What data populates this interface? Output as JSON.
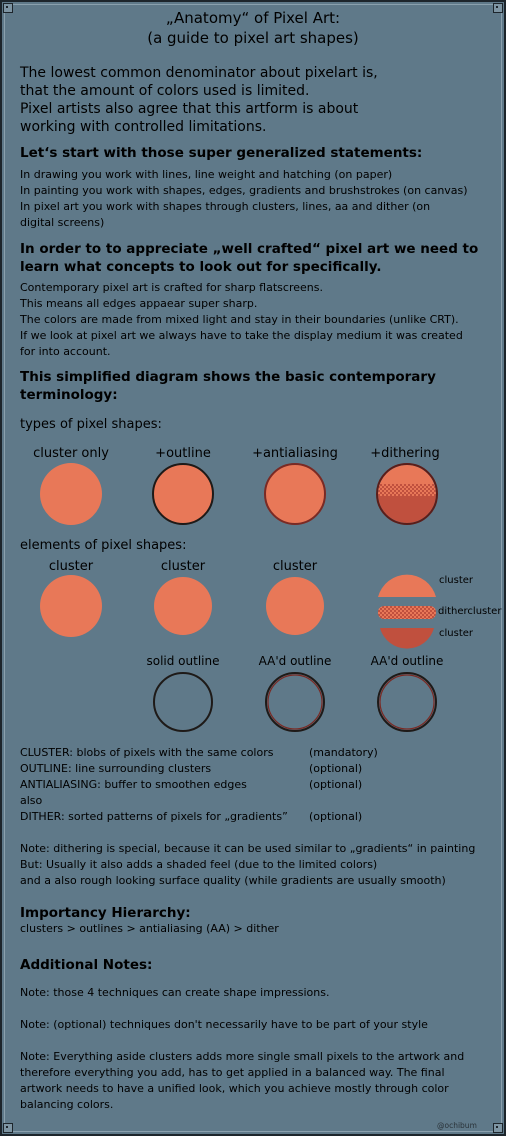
{
  "title": {
    "line1": "„Anatomy“ of Pixel Art:",
    "line2": "(a guide to pixel art shapes)"
  },
  "intro": [
    "The lowest common denominator about pixelart is,",
    "that the amount of colors used is limited.",
    "Pixel artists also agree that this artform is about",
    "working with controlled limitations."
  ],
  "section1": {
    "heading": "Let‘s start with those super generalized statements:",
    "lines": [
      "In drawing you work with lines, line weight and hatching (on paper)",
      "In painting you work with shapes, edges, gradients and brushstrokes (on canvas)",
      "In pixel art you work with shapes  through clusters, lines, aa and dither  (on",
      "digital screens)"
    ]
  },
  "section2": {
    "heading_line1": "In order to  to appreciate „well crafted“ pixel art we need to",
    "heading_line2": "learn what concepts to look out for specifically.",
    "lines": [
      "Contemporary pixel art is crafted for sharp flatscreens.",
      "This means all edges appaear super sharp.",
      "The colors are made from mixed light and stay in their boundaries (unlike CRT).",
      "If we look at pixel art we always have to take the display medium it was created",
      "for into account."
    ]
  },
  "section3": {
    "heading_line1": "This simplified diagram shows the basic contemporary",
    "heading_line2": "terminology:"
  },
  "types": {
    "label": "types of pixel shapes:",
    "items": [
      "cluster only",
      "+outline",
      "+antialiasing",
      "+dithering"
    ]
  },
  "elements": {
    "label": "elements of pixel shapes:",
    "items": [
      "cluster",
      "cluster",
      "cluster"
    ],
    "side_labels": [
      "cluster",
      "dithercluster",
      "cluster"
    ],
    "outline_items": [
      "solid outline",
      "AA'd outline",
      "AA'd outline"
    ]
  },
  "definitions": [
    {
      "term": "CLUSTER: blobs of pixels with the same colors",
      "status": "(mandatory)"
    },
    {
      "term": "OUTLINE: line surrounding clusters",
      "status": "(optional)"
    },
    {
      "term": "ANTIALIASING: buffer to smoothen edges",
      "status": "(optional)"
    },
    {
      "term": "also",
      "status": ""
    },
    {
      "term": "DITHER: sorted patterns of pixels for „gradients”",
      "status": "(optional)"
    }
  ],
  "note_dither": [
    "Note: dithering is special, because it can be used similar to „gradients“ in painting",
    "But: Usually it also adds a shaded feel (due to the limited colors)",
    "and a also rough looking surface quality (while gradients are usually smooth)"
  ],
  "hierarchy": {
    "heading": "Importancy Hierarchy:",
    "text": "clusters > outlines > antialiasing (AA) > dither"
  },
  "additional": {
    "heading": "Additional Notes:",
    "note1": "Note: those 4 techniques can create shape impressions.",
    "note2": "Note: (optional) techniques don't necessarily have to be part of your style",
    "note3": [
      "Note: Everything aside clusters adds more single small pixels to the artwork and",
      "therefore everything you add, has to get applied in a balanced way. The final",
      "artwork needs to have a unified look, which you achieve mostly through color",
      "balancing colors."
    ]
  },
  "credit": "@ochibum",
  "colors": {
    "background": "#5f7989",
    "orange": "#e87858",
    "dark_red": "#c0503e",
    "outline": "#1e1a18",
    "aa_red": "#7a2a24"
  }
}
